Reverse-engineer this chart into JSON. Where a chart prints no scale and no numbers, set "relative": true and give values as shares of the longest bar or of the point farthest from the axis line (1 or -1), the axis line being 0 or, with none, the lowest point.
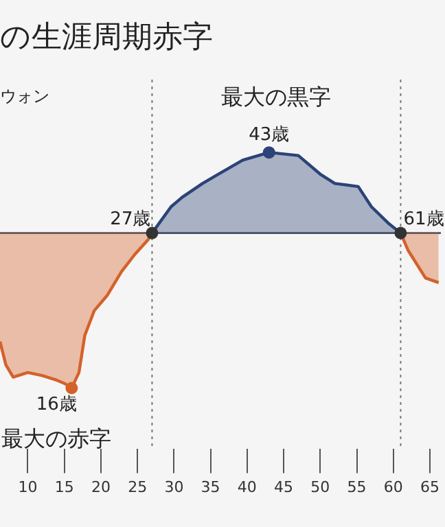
{
  "chart_data": {
    "type": "area",
    "title": "の生涯周期赤字",
    "ylabel": "ウォン",
    "relative": true,
    "xlim": [
      6.2,
      66.5
    ],
    "xticks": [
      10,
      15,
      20,
      25,
      30,
      35,
      40,
      45,
      50,
      55,
      60,
      65
    ],
    "series": [
      {
        "color": "#d4612a",
        "x": [
          6.2,
          7,
          8,
          10,
          12,
          14,
          15,
          16,
          17,
          17.8,
          19.1,
          20.9,
          22.8,
          24.6,
          26.5,
          27,
          44,
          61,
          62,
          64.4,
          66.2
        ],
        "values": [
          -0.7,
          -0.85,
          -0.93,
          -0.9,
          -0.92,
          -0.95,
          -0.97,
          -1,
          -0.9,
          -0.66,
          -0.5,
          -0.4,
          -0.25,
          -0.14,
          -0.04,
          0,
          null,
          0,
          -0.11,
          -0.29,
          -0.32
        ]
      },
      {
        "color": "#2c4377",
        "x": [
          27,
          29.6,
          31.1,
          33.9,
          35.7,
          39.4,
          43,
          47,
          50,
          52,
          55.2,
          57,
          59.4,
          61
        ],
        "values": [
          0,
          0.17,
          0.23,
          0.32,
          0.37,
          0.47,
          0.52,
          0.5,
          0.38,
          0.32,
          0.3,
          0.17,
          0.06,
          0
        ]
      }
    ],
    "ref_lines": [
      {
        "axis": "x",
        "value": 27,
        "label": null,
        "line_style": "dotted",
        "color": "#777777"
      },
      {
        "axis": "x",
        "value": 61,
        "label": null,
        "line_style": "dotted",
        "color": "#777777"
      }
    ],
    "annotations": [
      {
        "text": "27歳",
        "x": 27,
        "y": 0
      },
      {
        "text": "61歳",
        "x": 61,
        "y": 0
      },
      {
        "text": "43歳",
        "x": 43,
        "y": 0.52
      },
      {
        "text": "16歳",
        "x": 16,
        "y": -1
      },
      "最大の黒字",
      "最大の赤字"
    ],
    "grid": false,
    "legend": false,
    "marker": "none",
    "line_style": "solid"
  }
}
